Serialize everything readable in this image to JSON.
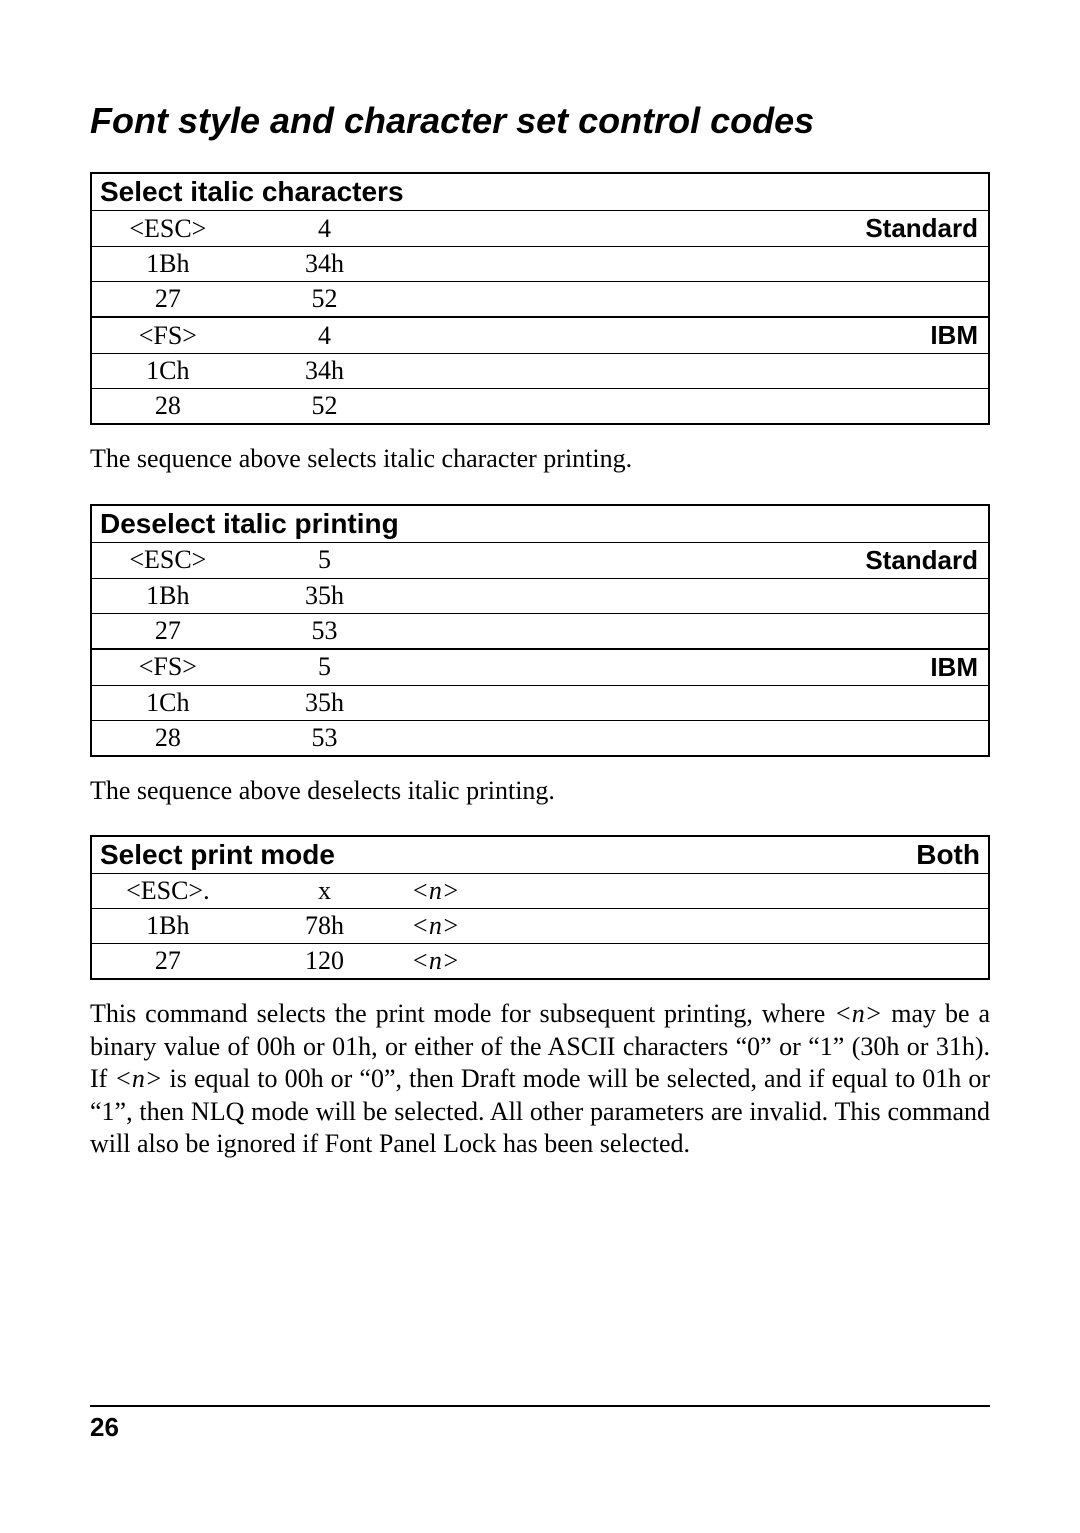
{
  "title": "Font style and character set control codes",
  "page_number": "26",
  "section1": {
    "header": "Select italic characters",
    "mode_a": "Standard",
    "mode_b": "IBM",
    "rows_a": [
      [
        "<ESC>",
        "4"
      ],
      [
        "1Bh",
        "34h"
      ],
      [
        "27",
        "52"
      ]
    ],
    "rows_b": [
      [
        "<FS>",
        "4"
      ],
      [
        "1Ch",
        "34h"
      ],
      [
        "28",
        "52"
      ]
    ],
    "desc": "The sequence above selects italic character printing."
  },
  "section2": {
    "header": "Deselect italic printing",
    "mode_a": "Standard",
    "mode_b": "IBM",
    "rows_a": [
      [
        "<ESC>",
        "5"
      ],
      [
        "1Bh",
        "35h"
      ],
      [
        "27",
        "53"
      ]
    ],
    "rows_b": [
      [
        "<FS>",
        "5"
      ],
      [
        "1Ch",
        "35h"
      ],
      [
        "28",
        "53"
      ]
    ],
    "desc": "The sequence above deselects italic printing."
  },
  "section3": {
    "header": "Select print mode",
    "mode": "Both",
    "rows": [
      [
        "<ESC>.",
        "x",
        "<n>"
      ],
      [
        "1Bh",
        "78h",
        "<n>"
      ],
      [
        "27",
        "120",
        "<n>"
      ]
    ],
    "desc_pre": "This command selects the print mode for subsequent printing, where ",
    "desc_n1": "<n>",
    "desc_mid1": " may be a binary value of 00h or 01h, or either of the ASCII characters “0” or “1” (30h or 31h). If ",
    "desc_n2": "<n>",
    "desc_mid2": " is equal to 00h or “0”, then Draft mode will be selected, and if equal to 01h or “1”, then NLQ mode will be selected. All other parameters are invalid. This command will also be ignored if Font Panel Lock has been selected."
  }
}
